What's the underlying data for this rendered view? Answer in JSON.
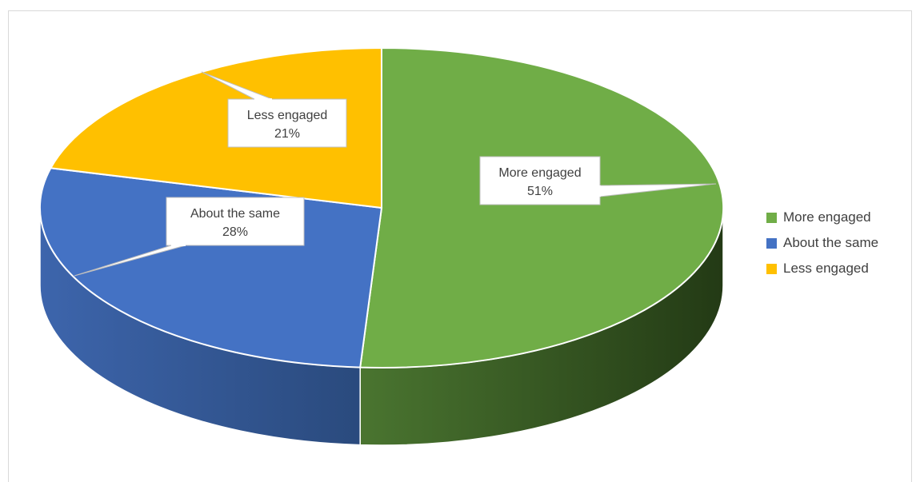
{
  "chart_data": {
    "type": "pie",
    "style": "3d",
    "categories": [
      "More engaged",
      "About the same",
      "Less engaged"
    ],
    "values": [
      51,
      28,
      21
    ],
    "labels": [
      "51%",
      "28%",
      "21%"
    ],
    "colors": [
      "#70ad47",
      "#4472c4",
      "#ffc000"
    ],
    "side_colors": [
      "#385723",
      "#2f5597",
      "#bf9000"
    ],
    "title": "",
    "legend_position": "right"
  }
}
